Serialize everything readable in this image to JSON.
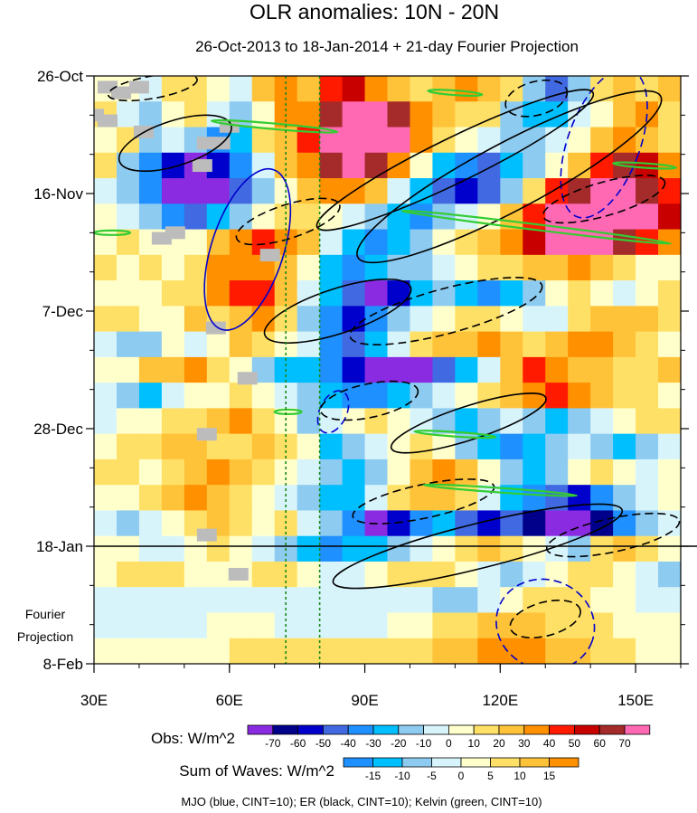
{
  "chart_data": {
    "type": "heatmap",
    "title": "OLR anomalies: 10N - 20N",
    "subtitle": "26-Oct-2013 to 18-Jan-2014 + 21-day Fourier Projection",
    "x_axis": {
      "range": [
        30,
        160
      ],
      "ticks": [
        30,
        60,
        90,
        120,
        150
      ],
      "tick_labels": [
        "30E",
        "60E",
        "90E",
        "120E",
        "150E"
      ]
    },
    "y_axis": {
      "range_days": [
        0,
        105
      ],
      "direction": "time increases downward",
      "ticks": [
        {
          "day": 0,
          "label": "26-Oct"
        },
        {
          "day": 21,
          "label": "16-Nov"
        },
        {
          "day": 42,
          "label": "7-Dec"
        },
        {
          "day": 63,
          "label": "28-Dec"
        },
        {
          "day": 84,
          "label": "18-Jan"
        },
        {
          "day": 105,
          "label": "8-Feb"
        }
      ]
    },
    "projection_label": [
      "Fourier",
      "Projection"
    ],
    "projection_start_day": 84,
    "reference_lines_lon": [
      72.5,
      80
    ],
    "obs_colorbar": {
      "title": "Obs: W/m^2",
      "levels": [
        -70,
        -60,
        -50,
        -40,
        -30,
        -20,
        -10,
        0,
        10,
        20,
        30,
        40,
        50,
        60,
        70
      ],
      "colors": [
        "#8a2be2",
        "#00008b",
        "#0000cd",
        "#4169e1",
        "#1e90ff",
        "#00bfff",
        "#8ecbf0",
        "#d8f4fb",
        "#ffffcc",
        "#ffe066",
        "#ffc33a",
        "#ff9000",
        "#ff1a00",
        "#c80000",
        "#a52a2a",
        "#ff69b4"
      ]
    },
    "waves_colorbar": {
      "title": "Sum of Waves: W/m^2",
      "levels": [
        -15,
        -10,
        -5,
        0,
        5,
        10,
        15
      ],
      "colors": [
        "#1e90ff",
        "#00bfff",
        "#8ecbf0",
        "#d8f4fb",
        "#ffffcc",
        "#ffe066",
        "#ffc33a",
        "#ff9000"
      ]
    },
    "cells": [
      [
        0,
        0,
        -1,
        1,
        1,
        0,
        -1,
        2,
        3,
        2,
        4,
        5,
        3,
        2,
        1,
        2,
        3,
        2,
        1,
        -2,
        -5,
        -2,
        1,
        2,
        1,
        2
      ],
      [
        1,
        -1,
        -2,
        0,
        1,
        -1,
        -2,
        0,
        3,
        3,
        6,
        8,
        9,
        6,
        3,
        2,
        1,
        1,
        -2,
        -3,
        -3,
        -1,
        0,
        2,
        3,
        1
      ],
      [
        0,
        1,
        -2,
        -1,
        -2,
        -4,
        -3,
        1,
        2,
        4,
        7,
        10,
        11,
        7,
        3,
        1,
        0,
        -1,
        -2,
        -2,
        -1,
        0,
        2,
        3,
        2,
        1
      ],
      [
        1,
        -2,
        -4,
        -6,
        -9,
        -6,
        -4,
        -1,
        2,
        3,
        6,
        7,
        6,
        3,
        0,
        -3,
        -4,
        -5,
        -3,
        -2,
        0,
        2,
        4,
        6,
        5,
        3
      ],
      [
        -1,
        -2,
        -4,
        -8,
        -10,
        -9,
        -5,
        -2,
        0,
        2,
        3,
        3,
        2,
        -1,
        -3,
        -5,
        -6,
        -5,
        -2,
        1,
        4,
        6,
        8,
        7,
        6,
        4
      ],
      [
        0,
        -1,
        -2,
        -4,
        -5,
        -3,
        -2,
        0,
        1,
        1,
        0,
        -1,
        -2,
        -3,
        -4,
        -2,
        -1,
        0,
        2,
        4,
        7,
        9,
        11,
        9,
        7,
        5
      ],
      [
        0,
        1,
        0,
        0,
        0,
        2,
        3,
        4,
        3,
        2,
        -1,
        -3,
        -4,
        -3,
        -2,
        0,
        1,
        2,
        3,
        5,
        7,
        9,
        8,
        6,
        4,
        3
      ],
      [
        1,
        0,
        1,
        0,
        1,
        3,
        3,
        3,
        2,
        0,
        -3,
        -4,
        -3,
        -2,
        -2,
        -1,
        0,
        1,
        1,
        2,
        2,
        3,
        2,
        1,
        0,
        0
      ],
      [
        0,
        0,
        0,
        1,
        1,
        3,
        4,
        4,
        2,
        -1,
        -3,
        -5,
        -9,
        -6,
        -3,
        -2,
        -3,
        -4,
        -3,
        -2,
        0,
        1,
        0,
        -1,
        0,
        1
      ],
      [
        1,
        1,
        0,
        0,
        2,
        1,
        2,
        3,
        1,
        -2,
        -4,
        -6,
        -4,
        -2,
        -1,
        0,
        1,
        1,
        0,
        -1,
        -1,
        1,
        2,
        2,
        2,
        1
      ],
      [
        -1,
        -2,
        -2,
        0,
        -1,
        0,
        2,
        1,
        0,
        -1,
        -4,
        -5,
        -3,
        -1,
        1,
        2,
        2,
        3,
        2,
        1,
        2,
        3,
        3,
        2,
        1,
        0
      ],
      [
        0,
        0,
        2,
        2,
        3,
        1,
        0,
        -2,
        -3,
        -3,
        -4,
        -6,
        -9,
        -10,
        -9,
        -5,
        -3,
        -1,
        2,
        4,
        3,
        2,
        2,
        1,
        1,
        2
      ],
      [
        -1,
        -2,
        -3,
        -1,
        0,
        0,
        1,
        0,
        -1,
        -2,
        -3,
        -4,
        -4,
        -3,
        -2,
        -1,
        0,
        1,
        2,
        3,
        4,
        3,
        2,
        1,
        1,
        0
      ],
      [
        -1,
        0,
        0,
        1,
        1,
        2,
        3,
        1,
        0,
        -2,
        -1,
        0,
        1,
        0,
        -1,
        -2,
        -3,
        -2,
        -1,
        -2,
        -3,
        -2,
        -1,
        0,
        1,
        1
      ],
      [
        0,
        1,
        1,
        2,
        2,
        1,
        1,
        2,
        1,
        0,
        -3,
        -2,
        -1,
        0,
        1,
        0,
        -2,
        -3,
        -4,
        -3,
        -2,
        -1,
        -2,
        -3,
        -2,
        -1
      ],
      [
        1,
        1,
        0,
        1,
        2,
        3,
        2,
        1,
        0,
        -1,
        -2,
        -3,
        -2,
        0,
        2,
        3,
        2,
        0,
        -2,
        -3,
        -2,
        0,
        1,
        0,
        -1,
        0
      ],
      [
        0,
        0,
        1,
        2,
        3,
        2,
        1,
        0,
        -1,
        -2,
        -3,
        -3,
        -1,
        1,
        2,
        2,
        1,
        -1,
        -3,
        -4,
        -5,
        -6,
        -4,
        -2,
        -1,
        0
      ],
      [
        -1,
        -2,
        -1,
        0,
        1,
        2,
        1,
        0,
        1,
        -1,
        -2,
        -4,
        -8,
        -6,
        -4,
        -3,
        -5,
        -6,
        -5,
        -7,
        -8,
        -9,
        -7,
        -4,
        -2,
        -1
      ],
      [
        0,
        0,
        -1,
        -1,
        0,
        1,
        0,
        -1,
        -2,
        -3,
        -4,
        -3,
        -3,
        -2,
        -1,
        0,
        1,
        2,
        1,
        0,
        -1,
        -2,
        1,
        2,
        1,
        0
      ],
      [
        0,
        1,
        1,
        1,
        0,
        0,
        0,
        1,
        1,
        0,
        -1,
        -1,
        0,
        1,
        1,
        1,
        0,
        -1,
        -2,
        -1,
        0,
        1,
        1,
        0,
        -1,
        -2
      ],
      [
        -1,
        -1,
        -1,
        -1,
        -1,
        -1,
        -1,
        -1,
        -1,
        -1,
        -1,
        -1,
        -1,
        -1,
        -1,
        -2,
        -2,
        -1,
        0,
        1,
        1,
        1,
        0,
        0,
        -1,
        -1
      ],
      [
        -1,
        -1,
        -1,
        -1,
        -1,
        0,
        0,
        0,
        -1,
        -1,
        -1,
        -1,
        -1,
        0,
        0,
        1,
        1,
        2,
        2,
        2,
        1,
        1,
        1,
        0,
        0,
        0
      ],
      [
        0,
        0,
        0,
        0,
        0,
        0,
        1,
        1,
        1,
        1,
        1,
        1,
        1,
        1,
        1,
        2,
        2,
        3,
        3,
        3,
        2,
        2,
        1,
        1,
        0,
        0
      ]
    ],
    "missing_cells": [
      [
        2,
        33
      ],
      [
        2,
        40
      ],
      [
        3,
        36
      ],
      [
        7,
        30
      ],
      [
        8,
        28
      ],
      [
        8,
        33
      ],
      [
        9,
        60
      ],
      [
        10,
        41
      ],
      [
        12,
        55
      ],
      [
        12,
        58
      ],
      [
        16,
        54
      ],
      [
        28,
        48
      ],
      [
        29,
        45
      ],
      [
        32,
        69
      ],
      [
        45,
        57
      ],
      [
        54,
        64
      ],
      [
        64,
        55
      ],
      [
        82,
        55
      ],
      [
        89,
        62
      ]
    ],
    "wave_contours": [
      {
        "wave": "MJO",
        "color": "#0000cd",
        "sign": "positive",
        "lon": 64,
        "day": 31,
        "rx": 8,
        "ry": 15,
        "rot": 18
      },
      {
        "wave": "MJO",
        "color": "#0000cd",
        "sign": "negative",
        "lon": 143,
        "day": 12,
        "rx": 8,
        "ry": 14,
        "rot": 20
      },
      {
        "wave": "MJO",
        "color": "#0000cd",
        "sign": "negative",
        "lon": 83,
        "day": 60,
        "rx": 3,
        "ry": 4,
        "rot": 25
      },
      {
        "wave": "MJO",
        "color": "#0000cd",
        "sign": "negative",
        "lon": 130,
        "day": 98,
        "rx": 11,
        "ry": 8,
        "rot": 20
      },
      {
        "wave": "ER",
        "color": "#000000",
        "sign": "positive",
        "lon": 48,
        "day": 12,
        "rx": 13,
        "ry": 4,
        "rot": -18
      },
      {
        "wave": "ER",
        "color": "#000000",
        "sign": "positive",
        "lon": 110,
        "day": 15,
        "rx": 34,
        "ry": 4,
        "rot": -26
      },
      {
        "wave": "ER",
        "color": "#000000",
        "sign": "positive",
        "lon": 122,
        "day": 18,
        "rx": 38,
        "ry": 6,
        "rot": -28
      },
      {
        "wave": "ER",
        "color": "#000000",
        "sign": "positive",
        "lon": 84,
        "day": 42,
        "rx": 17,
        "ry": 4,
        "rot": -18
      },
      {
        "wave": "ER",
        "color": "#000000",
        "sign": "positive",
        "lon": 113,
        "day": 62,
        "rx": 18,
        "ry": 3,
        "rot": -18
      },
      {
        "wave": "ER",
        "color": "#000000",
        "sign": "positive",
        "lon": 115,
        "day": 84,
        "rx": 33,
        "ry": 4,
        "rot": -14
      },
      {
        "wave": "ER",
        "color": "#000000",
        "sign": "negative",
        "lon": 128,
        "day": 4,
        "rx": 7,
        "ry": 3,
        "rot": -15
      },
      {
        "wave": "ER",
        "color": "#000000",
        "sign": "negative",
        "lon": 43,
        "day": 2,
        "rx": 10,
        "ry": 2,
        "rot": -10
      },
      {
        "wave": "ER",
        "color": "#000000",
        "sign": "negative",
        "lon": 73,
        "day": 26,
        "rx": 12,
        "ry": 3,
        "rot": -18
      },
      {
        "wave": "ER",
        "color": "#000000",
        "sign": "negative",
        "lon": 143,
        "day": 22,
        "rx": 14,
        "ry": 3,
        "rot": -16
      },
      {
        "wave": "ER",
        "color": "#000000",
        "sign": "negative",
        "lon": 108,
        "day": 42,
        "rx": 22,
        "ry": 4,
        "rot": -15
      },
      {
        "wave": "ER",
        "color": "#000000",
        "sign": "negative",
        "lon": 91,
        "day": 58,
        "rx": 11,
        "ry": 3,
        "rot": -12
      },
      {
        "wave": "ER",
        "color": "#000000",
        "sign": "negative",
        "lon": 103,
        "day": 76,
        "rx": 16,
        "ry": 3,
        "rot": -12
      },
      {
        "wave": "ER",
        "color": "#000000",
        "sign": "negative",
        "lon": 145,
        "day": 82,
        "rx": 15,
        "ry": 3,
        "rot": -12
      },
      {
        "wave": "ER",
        "color": "#000000",
        "sign": "negative",
        "lon": 130,
        "day": 97,
        "rx": 8,
        "ry": 3,
        "rot": -15
      },
      {
        "wave": "Kelvin",
        "color": "#33cc33",
        "sign": "positive",
        "lon": 70,
        "day": 9,
        "rx": 14,
        "ry": 0.5,
        "rot": 5
      },
      {
        "wave": "Kelvin",
        "color": "#33cc33",
        "sign": "positive",
        "lon": 110,
        "day": 3,
        "rx": 6,
        "ry": 0.4,
        "rot": 4
      },
      {
        "wave": "Kelvin",
        "color": "#33cc33",
        "sign": "positive",
        "lon": 128,
        "day": 27,
        "rx": 30,
        "ry": 0.5,
        "rot": 7
      },
      {
        "wave": "Kelvin",
        "color": "#33cc33",
        "sign": "positive",
        "lon": 34,
        "day": 28,
        "rx": 4,
        "ry": 0.4,
        "rot": 0
      },
      {
        "wave": "Kelvin",
        "color": "#33cc33",
        "sign": "positive",
        "lon": 152,
        "day": 16,
        "rx": 7,
        "ry": 0.4,
        "rot": 4
      },
      {
        "wave": "Kelvin",
        "color": "#33cc33",
        "sign": "positive",
        "lon": 110,
        "day": 64,
        "rx": 9,
        "ry": 0.4,
        "rot": 4
      },
      {
        "wave": "Kelvin",
        "color": "#33cc33",
        "sign": "positive",
        "lon": 120,
        "day": 74,
        "rx": 17,
        "ry": 0.4,
        "rot": 4
      },
      {
        "wave": "Kelvin",
        "color": "#33cc33",
        "sign": "positive",
        "lon": 73,
        "day": 60,
        "rx": 3,
        "ry": 0.4,
        "rot": 0
      }
    ]
  },
  "footer_text": "MJO (blue, CINT=10); ER (black, CINT=10); Kelvin (green, CINT=10)"
}
